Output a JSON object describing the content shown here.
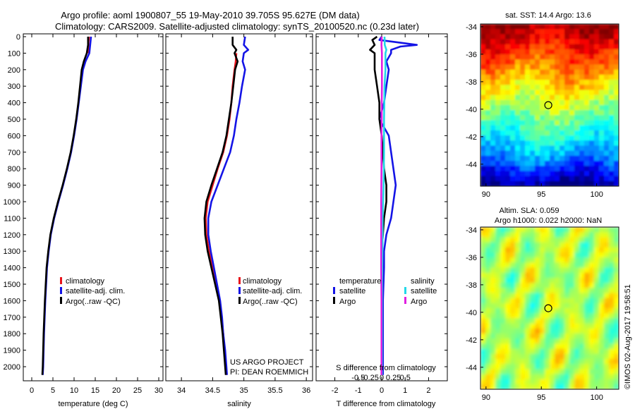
{
  "header": {
    "title_line1": "Argo profile: aoml 1900807_55 19-May-2010 39.705S 95.627E (DM data)",
    "title_line2": "Climatology: CARS2009. Satellite-adjusted climatology: synTS_20100520.nc (0.23d later)"
  },
  "credits": {
    "project": "US ARGO PROJECT",
    "pi": "PI: DEAN ROEMMICH",
    "imos": "©IMOS 02-Aug-2017 19:58:51"
  },
  "colors": {
    "climatology": "#e8141c",
    "satellite": "#1414e6",
    "argo": "#000000",
    "salinity_satellite": "#22d8e8",
    "salinity_argo": "#e020e0"
  },
  "chart_data": [
    {
      "type": "line",
      "panel": "temperature",
      "xlabel": "temperature (deg C)",
      "ylabel": "",
      "xlim": [
        -2,
        31
      ],
      "ylim": [
        2050,
        0
      ],
      "xticks": [
        0,
        5,
        10,
        15,
        20,
        25,
        30
      ],
      "yticks": [
        0,
        100,
        200,
        300,
        400,
        500,
        600,
        700,
        800,
        900,
        1000,
        1100,
        1200,
        1300,
        1400,
        1500,
        1600,
        1700,
        1800,
        1900,
        2000
      ],
      "legend": [
        "climatology",
        "satellite-adj. clim.",
        "Argo(..raw -QC)"
      ],
      "legend_position": "lower-right",
      "series": [
        {
          "name": "climatology",
          "color": "#e8141c",
          "depth": [
            0,
            10,
            30,
            50,
            80,
            100
          ],
          "values": [
            13.5,
            13.5,
            13.4,
            13.4,
            13.3,
            13.2
          ]
        },
        {
          "name": "satellite-adj. clim.",
          "color": "#1414e6",
          "depth": [
            0,
            50,
            100,
            150,
            200,
            300,
            400,
            500,
            600,
            700,
            800,
            900,
            1000,
            1100,
            1200,
            1300,
            1400,
            1600,
            1800,
            2000,
            2050
          ],
          "values": [
            14.0,
            13.8,
            13.6,
            12.7,
            12.1,
            11.6,
            11.1,
            10.6,
            10.0,
            9.3,
            8.4,
            7.4,
            6.3,
            5.3,
            4.5,
            4.0,
            3.6,
            3.2,
            2.9,
            2.7,
            2.6
          ]
        },
        {
          "name": "Argo(..raw -QC)",
          "color": "#000000",
          "depth": [
            0,
            50,
            100,
            150,
            200,
            300,
            400,
            500,
            600,
            700,
            800,
            900,
            1000,
            1100,
            1200,
            1300,
            1400,
            1600,
            1800,
            2000,
            2050
          ],
          "values": [
            13.3,
            13.3,
            13.0,
            12.3,
            11.8,
            11.4,
            11.0,
            10.5,
            9.9,
            9.2,
            8.3,
            7.3,
            6.2,
            5.2,
            4.4,
            3.9,
            3.5,
            3.1,
            2.8,
            2.6,
            2.5
          ]
        }
      ]
    },
    {
      "type": "line",
      "panel": "salinity",
      "xlabel": "salinity",
      "ylabel": "",
      "xlim": [
        33.75,
        36.1
      ],
      "ylim": [
        2050,
        0
      ],
      "xticks": [
        34,
        34.5,
        35,
        35.5,
        36
      ],
      "legend": [
        "climatology",
        "satellite-adj. clim.",
        "Argo(..raw -QC)"
      ],
      "legend_position": "lower-right",
      "series": [
        {
          "name": "climatology",
          "color": "#e8141c",
          "depth": [
            100,
            150,
            200,
            300,
            400,
            500,
            600,
            700,
            800,
            900,
            1000,
            1100,
            1200,
            1300,
            1400,
            1500,
            1600,
            1700,
            1800,
            1900,
            2000,
            2050
          ],
          "values": [
            34.88,
            34.87,
            34.85,
            34.82,
            34.8,
            34.77,
            34.73,
            34.67,
            34.58,
            34.5,
            34.42,
            34.39,
            34.4,
            34.44,
            34.5,
            34.56,
            34.61,
            34.64,
            34.67,
            34.69,
            34.71,
            34.72
          ]
        },
        {
          "name": "satellite-adj. clim.",
          "color": "#1414e6",
          "depth": [
            0,
            50,
            80,
            100,
            150,
            200,
            300,
            400,
            500,
            600,
            700,
            800,
            900,
            1000,
            1100,
            1200,
            1300,
            1400,
            1500,
            1600,
            1700,
            1800,
            1900,
            2000,
            2050
          ],
          "values": [
            35.02,
            35.0,
            35.07,
            35.0,
            34.98,
            35.02,
            34.97,
            34.93,
            34.88,
            34.84,
            34.78,
            34.68,
            34.58,
            34.48,
            34.43,
            34.43,
            34.47,
            34.52,
            34.57,
            34.62,
            34.65,
            34.67,
            34.7,
            34.72,
            34.73
          ]
        },
        {
          "name": "Argo(..raw -QC)",
          "color": "#000000",
          "depth": [
            0,
            50,
            80,
            100,
            150,
            200,
            300,
            400,
            500,
            600,
            700,
            800,
            900,
            1000,
            1100,
            1200,
            1300,
            1400,
            1500,
            1600,
            1700,
            1800,
            1900,
            2000,
            2050
          ],
          "values": [
            34.82,
            34.82,
            34.88,
            34.85,
            34.9,
            34.86,
            34.83,
            34.8,
            34.76,
            34.72,
            34.66,
            34.57,
            34.48,
            34.4,
            34.37,
            34.38,
            34.42,
            34.48,
            34.54,
            34.6,
            34.63,
            34.66,
            34.68,
            34.7,
            34.71
          ]
        }
      ]
    },
    {
      "type": "line",
      "panel": "difference",
      "xlabel": "T difference from climatology",
      "xlabel_top": "S difference from climatology",
      "ylabel": "",
      "xlim": [
        -2.8,
        2.8
      ],
      "ylim": [
        2050,
        0
      ],
      "xticks": [
        -2,
        -1,
        0,
        1,
        2
      ],
      "xticks_top": [
        "-0.5",
        "-0.25",
        "0",
        "0.25",
        "0.5"
      ],
      "legend_groups": [
        {
          "title": "temperature",
          "entries": [
            "satellite",
            "Argo"
          ]
        },
        {
          "title": "salinity",
          "entries": [
            "satellite",
            "Argo"
          ]
        }
      ],
      "legend_position": "lower-center",
      "series": [
        {
          "name": "temperature satellite",
          "color": "#1414e6",
          "depth": [
            0,
            20,
            40,
            50,
            60,
            80,
            100,
            150,
            200,
            300,
            400,
            500,
            600,
            800,
            900,
            1000,
            1100,
            1200,
            1300,
            1400,
            1600,
            1800,
            2000,
            2050
          ],
          "values": [
            0.0,
            -0.1,
            1.0,
            1.5,
            0.8,
            0.4,
            0.4,
            0.2,
            0.3,
            0.2,
            0.1,
            -0.1,
            0.3,
            0.5,
            0.6,
            0.5,
            0.4,
            0.2,
            0.1,
            0.1,
            0.05,
            0.05,
            0.05,
            0.05
          ]
        },
        {
          "name": "temperature Argo",
          "color": "#000000",
          "depth": [
            0,
            20,
            50,
            80,
            100,
            200,
            300,
            400,
            500,
            600,
            800,
            900,
            1000,
            1100,
            1200,
            1300,
            1400,
            1600,
            1800,
            2000,
            2050
          ],
          "values": [
            -0.2,
            -0.4,
            -0.3,
            -0.5,
            -0.3,
            -0.3,
            -0.2,
            -0.1,
            -0.1,
            0.0,
            0.1,
            0.2,
            0.2,
            0.1,
            0.05,
            0.0,
            0.0,
            0.0,
            0.0,
            0.0,
            0.0
          ]
        },
        {
          "name": "salinity satellite",
          "color": "#22d8e8",
          "depth": [
            0,
            50,
            80,
            100,
            200,
            300,
            400,
            500,
            600,
            700,
            800,
            900,
            1000,
            1100,
            1200,
            1300,
            1400,
            1600,
            1800,
            2000,
            2050
          ],
          "values": [
            0.12,
            0.13,
            0.2,
            0.16,
            0.16,
            0.12,
            0.11,
            0.1,
            0.1,
            0.1,
            0.09,
            0.08,
            0.06,
            0.04,
            0.04,
            0.03,
            0.02,
            0.01,
            0.01,
            0.01,
            0.01
          ]
        },
        {
          "name": "salinity Argo",
          "color": "#e020e0",
          "depth": [
            0,
            50,
            100,
            200,
            300,
            400,
            500,
            600,
            800,
            1000,
            1200,
            1400,
            1600,
            1800,
            2000,
            2050
          ],
          "values": [
            0.0,
            -0.01,
            0.01,
            0.01,
            0.01,
            0.0,
            0.0,
            -0.01,
            -0.01,
            -0.02,
            -0.02,
            -0.02,
            -0.01,
            -0.01,
            -0.01,
            -0.01
          ]
        }
      ]
    },
    {
      "type": "heatmap",
      "panel": "sst_map",
      "title": "sat. SST: 14.4 Argo: 13.6",
      "xlim": [
        89.5,
        102
      ],
      "ylim": [
        -45.6,
        -33.8
      ],
      "xticks": [
        90,
        95,
        100
      ],
      "yticks": [
        -34,
        -36,
        -38,
        -40,
        -42,
        -44
      ],
      "marker": {
        "lon": 95.627,
        "lat": -39.705
      },
      "colormap": "jet"
    },
    {
      "type": "heatmap",
      "panel": "sla_map",
      "title_line1": "Altim. SLA: 0.059",
      "title_line2": "Argo h1000: 0.022 h2000: NaN",
      "xlim": [
        89.5,
        102
      ],
      "ylim": [
        -45.6,
        -33.8
      ],
      "xticks": [
        90,
        95,
        100
      ],
      "yticks": [
        -34,
        -36,
        -38,
        -40,
        -42,
        -44
      ],
      "marker": {
        "lon": 95.627,
        "lat": -39.705
      },
      "colormap": "jet"
    }
  ]
}
